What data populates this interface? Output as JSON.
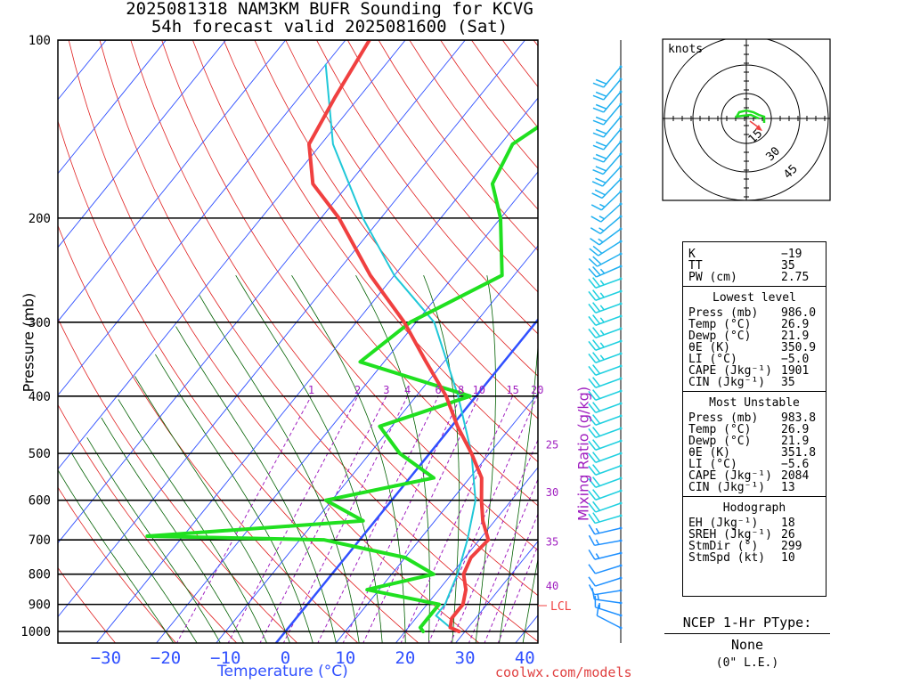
{
  "title_line1": "2025081318 NAM3KM BUFR Sounding for KCVG",
  "title_line2": "54h forecast valid 2025081600 (Sat)",
  "credit": "coolwx.com/models",
  "colors": {
    "temp": "#f04040",
    "dewpoint": "#20e020",
    "parcel": "#20c8d8",
    "isotherm": "#3050ff",
    "dry_adiabat": "#e02020",
    "moist_adiabat": "#006000",
    "mixing_ratio": "#a020c0",
    "wind": "#20a0f0"
  },
  "chart_data": {
    "type": "line",
    "xlabel": "Temperature (°C)",
    "ylabel": "Pressure (mb)",
    "x_ticks": [
      "−30",
      "−20",
      "−10",
      "0",
      "10",
      "20",
      "30",
      "40"
    ],
    "pressure_ticks": [
      "100",
      "200",
      "300",
      "400",
      "500",
      "600",
      "700",
      "800",
      "900",
      "1000"
    ],
    "mixing_ratio_label": "Mixing Ratio (g/kg)",
    "mixing_ratio_ticks_top": [
      "1",
      "2",
      "3",
      "4",
      "6",
      "8",
      "10",
      "15",
      "20"
    ],
    "mixing_ratio_ticks_side": [
      "25",
      "30",
      "35",
      "40"
    ],
    "lcl_label": "LCL",
    "series": [
      {
        "key": "temp",
        "values": [
          [
            1000,
            29
          ],
          [
            985,
            27
          ],
          [
            950,
            26
          ],
          [
            900,
            26
          ],
          [
            850,
            24.5
          ],
          [
            800,
            22
          ],
          [
            750,
            21
          ],
          [
            700,
            21.5
          ],
          [
            650,
            18
          ],
          [
            600,
            15
          ],
          [
            550,
            12
          ],
          [
            500,
            7
          ],
          [
            450,
            1
          ],
          [
            400,
            -5
          ],
          [
            350,
            -13
          ],
          [
            300,
            -22
          ],
          [
            250,
            -34
          ],
          [
            200,
            -47
          ],
          [
            175,
            -56
          ],
          [
            150,
            -62
          ],
          [
            125,
            -64
          ],
          [
            100,
            -66
          ]
        ]
      },
      {
        "key": "dewpoint",
        "values": [
          [
            1000,
            23
          ],
          [
            985,
            22
          ],
          [
            950,
            22
          ],
          [
            900,
            22
          ],
          [
            850,
            8
          ],
          [
            800,
            17
          ],
          [
            750,
            10
          ],
          [
            700,
            -6
          ],
          [
            690,
            -36
          ],
          [
            650,
            -2
          ],
          [
            600,
            -11
          ],
          [
            550,
            4
          ],
          [
            500,
            -5
          ],
          [
            450,
            -12
          ],
          [
            400,
            -1
          ],
          [
            350,
            -24
          ],
          [
            300,
            -21
          ],
          [
            250,
            -12
          ],
          [
            200,
            -20
          ],
          [
            175,
            -26
          ],
          [
            150,
            -28
          ],
          [
            140,
            -26
          ]
        ]
      },
      {
        "key": "parcel",
        "values": [
          [
            985,
            27
          ],
          [
            940,
            23
          ],
          [
            900,
            23
          ],
          [
            850,
            22
          ],
          [
            800,
            21
          ],
          [
            700,
            18
          ],
          [
            600,
            14
          ],
          [
            500,
            7
          ],
          [
            400,
            -3
          ],
          [
            300,
            -17
          ],
          [
            250,
            -30
          ],
          [
            200,
            -43
          ],
          [
            150,
            -58
          ],
          [
            110,
            -70
          ]
        ]
      }
    ],
    "wind_barbs": [
      {
        "p": 1000,
        "dir": 300,
        "spd": 10
      },
      {
        "p": 950,
        "dir": 290,
        "spd": 12
      },
      {
        "p": 900,
        "dir": 280,
        "spd": 15
      },
      {
        "p": 850,
        "dir": 260,
        "spd": 10
      },
      {
        "p": 800,
        "dir": 250,
        "spd": 10
      },
      {
        "p": 700,
        "dir": 260,
        "spd": 15
      },
      {
        "p": 600,
        "dir": 250,
        "spd": 20
      },
      {
        "p": 500,
        "dir": 250,
        "spd": 20
      },
      {
        "p": 400,
        "dir": 250,
        "spd": 20
      },
      {
        "p": 300,
        "dir": 250,
        "spd": 25
      },
      {
        "p": 250,
        "dir": 250,
        "spd": 25
      },
      {
        "p": 200,
        "dir": 230,
        "spd": 15
      },
      {
        "p": 150,
        "dir": 220,
        "spd": 20
      },
      {
        "p": 100,
        "dir": 220,
        "spd": 20
      }
    ],
    "hodograph": {
      "units_label": "knots",
      "ring_labels": [
        "15",
        "30",
        "45"
      ]
    }
  },
  "stats": {
    "top": [
      {
        "label": "K",
        "value": "−19"
      },
      {
        "label": "TT",
        "value": "35"
      },
      {
        "label": "PW (cm)",
        "value": "2.75"
      }
    ],
    "lowest_title": "Lowest level",
    "lowest": [
      {
        "label": "Press (mb)",
        "value": "986.0"
      },
      {
        "label": "Temp (°C)",
        "value": "26.9"
      },
      {
        "label": "Dewp (°C)",
        "value": "21.9"
      },
      {
        "label": "θE (K)",
        "value": "350.9"
      },
      {
        "label": "LI (°C)",
        "value": "−5.0"
      },
      {
        "label": "CAPE (Jkg⁻¹)",
        "value": "1901"
      },
      {
        "label": "CIN (Jkg⁻¹)",
        "value": "35"
      }
    ],
    "mu_title": "Most Unstable",
    "mu": [
      {
        "label": "Press (mb)",
        "value": "983.8"
      },
      {
        "label": "Temp (°C)",
        "value": "26.9"
      },
      {
        "label": "Dewp (°C)",
        "value": "21.9"
      },
      {
        "label": "θE (K)",
        "value": "351.8"
      },
      {
        "label": "LI (°C)",
        "value": "−5.6"
      },
      {
        "label": "CAPE (Jkg⁻¹)",
        "value": "2084"
      },
      {
        "label": "CIN (Jkg⁻¹)",
        "value": "13"
      }
    ],
    "hodo_title": "Hodograph",
    "hodo": [
      {
        "label": "EH (Jkg⁻¹)",
        "value": "18"
      },
      {
        "label": "SREH (Jkg⁻¹)",
        "value": "26"
      },
      {
        "label": "StmDir (°)",
        "value": "299"
      },
      {
        "label": "StmSpd (kt)",
        "value": "10"
      }
    ]
  },
  "ptype": {
    "header": "NCEP 1-Hr PType:",
    "value": "None",
    "note": "(0\" L.E.)"
  }
}
